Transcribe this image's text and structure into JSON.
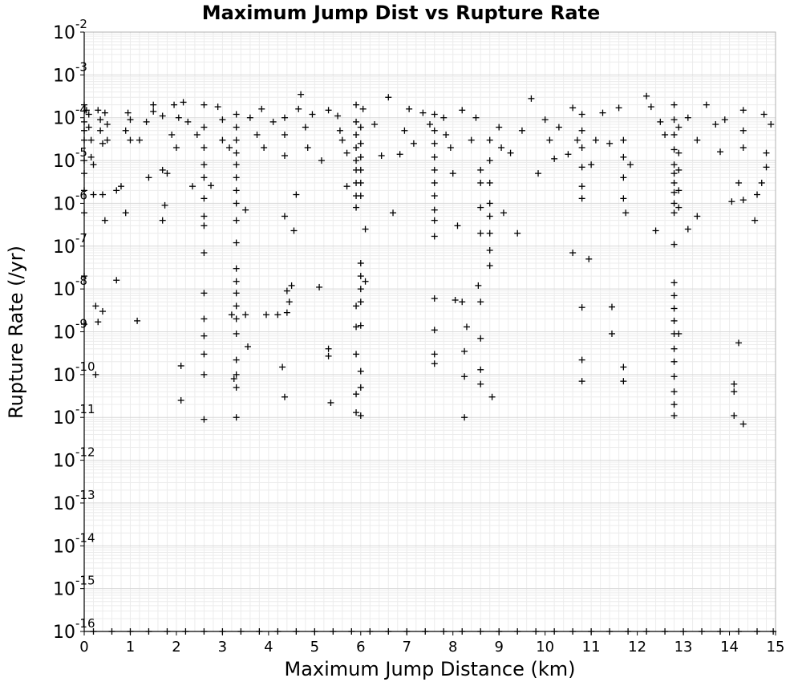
{
  "chart_data": {
    "type": "scatter",
    "title": "Maximum Jump Dist vs Rupture Rate",
    "xlabel": "Maximum Jump Distance (km)",
    "ylabel": "Rupture Rate (/yr)",
    "xlim": [
      0,
      15
    ],
    "ylim": [
      1e-16,
      0.01
    ],
    "yscale": "log",
    "grid": true,
    "marker": "plus",
    "x_ticks": [
      "0",
      "1",
      "2",
      "3",
      "4",
      "5",
      "6",
      "7",
      "8",
      "9",
      "10",
      "11",
      "12",
      "13",
      "14",
      "15"
    ],
    "y_ticks": [
      {
        "base": "10",
        "exp": "-2"
      },
      {
        "base": "10",
        "exp": "-3"
      },
      {
        "base": "10",
        "exp": "-4"
      },
      {
        "base": "10",
        "exp": "-5"
      },
      {
        "base": "10",
        "exp": "-6"
      },
      {
        "base": "10",
        "exp": "-7"
      },
      {
        "base": "10",
        "exp": "-8"
      },
      {
        "base": "10",
        "exp": "-9"
      },
      {
        "base": "10",
        "exp": "-10"
      },
      {
        "base": "10",
        "exp": "-11"
      },
      {
        "base": "10",
        "exp": "-12"
      },
      {
        "base": "10",
        "exp": "-13"
      },
      {
        "base": "10",
        "exp": "-14"
      },
      {
        "base": "10",
        "exp": "-15"
      },
      {
        "base": "10",
        "exp": "-16"
      }
    ],
    "points": [
      [
        0.0,
        0.0002
      ],
      [
        0.0,
        8e-05
      ],
      [
        0.0,
        5e-05
      ],
      [
        0.0,
        3e-05
      ],
      [
        0.0,
        1e-05
      ],
      [
        0.0,
        5e-06
      ],
      [
        0.0,
        2e-06
      ],
      [
        0.0,
        6e-07
      ],
      [
        0.0,
        2e-08
      ],
      [
        0.0,
        1.5e-09
      ],
      [
        0.05,
        0.00015
      ],
      [
        0.1,
        0.00012
      ],
      [
        0.1,
        6e-05
      ],
      [
        0.15,
        3e-05
      ],
      [
        0.15,
        1.2e-05
      ],
      [
        0.2,
        8e-06
      ],
      [
        0.2,
        1.6e-06
      ],
      [
        0.25,
        4e-09
      ],
      [
        0.25,
        1e-10
      ],
      [
        0.3,
        1.7e-09
      ],
      [
        0.3,
        0.00015
      ],
      [
        0.35,
        9e-05
      ],
      [
        0.35,
        5e-05
      ],
      [
        0.4,
        2.5e-05
      ],
      [
        0.4,
        3e-09
      ],
      [
        0.45,
        4e-07
      ],
      [
        0.4,
        1.6e-06
      ],
      [
        0.45,
        0.00013
      ],
      [
        0.5,
        7e-05
      ],
      [
        0.5,
        3e-05
      ],
      [
        0.7,
        1.6e-08
      ],
      [
        0.7,
        2e-06
      ],
      [
        0.8,
        2.5e-06
      ],
      [
        0.9,
        6e-07
      ],
      [
        0.9,
        5e-05
      ],
      [
        0.95,
        0.00013
      ],
      [
        1.0,
        3e-05
      ],
      [
        1.0,
        9e-05
      ],
      [
        1.15,
        1.8e-09
      ],
      [
        1.2,
        3e-05
      ],
      [
        1.35,
        8e-05
      ],
      [
        1.4,
        4e-06
      ],
      [
        1.5,
        0.0002
      ],
      [
        1.5,
        0.00014
      ],
      [
        1.7,
        0.00011
      ],
      [
        1.7,
        6e-06
      ],
      [
        1.7,
        4e-07
      ],
      [
        1.75,
        9e-07
      ],
      [
        1.8,
        5e-06
      ],
      [
        1.9,
        4e-05
      ],
      [
        1.95,
        0.0002
      ],
      [
        2.0,
        2e-05
      ],
      [
        2.05,
        0.0001
      ],
      [
        2.1,
        1.6e-10
      ],
      [
        2.1,
        2.5e-11
      ],
      [
        2.15,
        0.00023
      ],
      [
        2.25,
        8e-05
      ],
      [
        2.35,
        2.5e-06
      ],
      [
        2.45,
        4e-05
      ],
      [
        2.6,
        0.0002
      ],
      [
        2.6,
        6e-05
      ],
      [
        2.6,
        2e-05
      ],
      [
        2.6,
        8e-06
      ],
      [
        2.6,
        4e-06
      ],
      [
        2.6,
        1.3e-06
      ],
      [
        2.6,
        5e-07
      ],
      [
        2.6,
        3e-07
      ],
      [
        2.6,
        7e-08
      ],
      [
        2.6,
        8e-09
      ],
      [
        2.6,
        2e-09
      ],
      [
        2.6,
        8e-10
      ],
      [
        2.6,
        3e-10
      ],
      [
        2.6,
        1e-10
      ],
      [
        2.6,
        9e-12
      ],
      [
        2.75,
        2.6e-06
      ],
      [
        2.9,
        0.00018
      ],
      [
        3.0,
        9e-05
      ],
      [
        3.0,
        3e-05
      ],
      [
        3.15,
        2e-05
      ],
      [
        3.3,
        0.00012
      ],
      [
        3.3,
        6e-05
      ],
      [
        3.3,
        3e-05
      ],
      [
        3.3,
        1.5e-05
      ],
      [
        3.3,
        8e-06
      ],
      [
        3.3,
        4e-06
      ],
      [
        3.3,
        2e-06
      ],
      [
        3.3,
        1e-06
      ],
      [
        3.3,
        4e-07
      ],
      [
        3.3,
        1.2e-07
      ],
      [
        3.3,
        3e-08
      ],
      [
        3.3,
        1.5e-08
      ],
      [
        3.3,
        8e-09
      ],
      [
        3.3,
        4e-09
      ],
      [
        3.3,
        2e-09
      ],
      [
        3.3,
        9e-10
      ],
      [
        3.3,
        2.2e-10
      ],
      [
        3.3,
        1e-10
      ],
      [
        3.3,
        5e-11
      ],
      [
        3.3,
        1e-11
      ],
      [
        3.2,
        2.5e-09
      ],
      [
        3.25,
        8e-11
      ],
      [
        3.5,
        2.5e-09
      ],
      [
        3.55,
        4.5e-10
      ],
      [
        3.5,
        7e-07
      ],
      [
        3.6,
        0.0001
      ],
      [
        3.75,
        4e-05
      ],
      [
        3.85,
        0.00016
      ],
      [
        3.9,
        2e-05
      ],
      [
        3.95,
        2.5e-09
      ],
      [
        4.1,
        8e-05
      ],
      [
        4.2,
        2.5e-09
      ],
      [
        4.3,
        1.5e-10
      ],
      [
        4.35,
        3e-11
      ],
      [
        4.35,
        5e-07
      ],
      [
        4.35,
        1.3e-05
      ],
      [
        4.35,
        4e-05
      ],
      [
        4.35,
        0.0001
      ],
      [
        4.4,
        9e-09
      ],
      [
        4.4,
        2.8e-09
      ],
      [
        4.45,
        5e-09
      ],
      [
        4.5,
        1.2e-08
      ],
      [
        4.55,
        2.3e-07
      ],
      [
        4.6,
        1.6e-06
      ],
      [
        4.65,
        0.00016
      ],
      [
        4.7,
        0.00035
      ],
      [
        4.8,
        6e-05
      ],
      [
        4.85,
        2e-05
      ],
      [
        4.95,
        0.00012
      ],
      [
        5.1,
        1.1e-08
      ],
      [
        5.15,
        1e-05
      ],
      [
        5.3,
        4e-10
      ],
      [
        5.3,
        0.00015
      ],
      [
        5.3,
        2.7e-10
      ],
      [
        5.35,
        2.2e-11
      ],
      [
        5.5,
        0.00011
      ],
      [
        5.55,
        5e-05
      ],
      [
        5.6,
        3e-05
      ],
      [
        5.7,
        2.5e-06
      ],
      [
        5.7,
        1.5e-05
      ],
      [
        5.9,
        0.0002
      ],
      [
        5.9,
        8e-05
      ],
      [
        5.9,
        4e-05
      ],
      [
        5.9,
        2e-05
      ],
      [
        5.9,
        1e-05
      ],
      [
        5.9,
        6e-06
      ],
      [
        5.9,
        3e-06
      ],
      [
        5.9,
        1.5e-06
      ],
      [
        5.9,
        8e-07
      ],
      [
        5.9,
        4e-09
      ],
      [
        5.9,
        1.3e-09
      ],
      [
        5.9,
        3e-10
      ],
      [
        5.9,
        3.5e-11
      ],
      [
        5.9,
        1.3e-11
      ],
      [
        6.0,
        6e-05
      ],
      [
        6.0,
        2.5e-05
      ],
      [
        6.0,
        1.2e-05
      ],
      [
        6.0,
        6e-06
      ],
      [
        6.0,
        3e-06
      ],
      [
        6.0,
        1.5e-06
      ],
      [
        6.0,
        4e-08
      ],
      [
        6.0,
        2e-08
      ],
      [
        6.0,
        1e-08
      ],
      [
        6.0,
        5e-09
      ],
      [
        6.0,
        1.4e-09
      ],
      [
        6.0,
        1.2e-10
      ],
      [
        6.0,
        5e-11
      ],
      [
        6.0,
        1.1e-11
      ],
      [
        6.05,
        0.00016
      ],
      [
        6.1,
        2.5e-07
      ],
      [
        6.1,
        1.5e-08
      ],
      [
        6.3,
        7e-05
      ],
      [
        6.45,
        1.3e-05
      ],
      [
        6.6,
        0.0003
      ],
      [
        6.7,
        6e-07
      ],
      [
        6.85,
        1.4e-05
      ],
      [
        6.95,
        5e-05
      ],
      [
        7.05,
        0.00016
      ],
      [
        7.15,
        2.5e-05
      ],
      [
        7.35,
        0.00013
      ],
      [
        7.5,
        7e-05
      ],
      [
        7.6,
        0.00012
      ],
      [
        7.6,
        5e-05
      ],
      [
        7.6,
        2.5e-05
      ],
      [
        7.6,
        1.2e-05
      ],
      [
        7.6,
        6e-06
      ],
      [
        7.6,
        3e-06
      ],
      [
        7.6,
        1.5e-06
      ],
      [
        7.6,
        7e-07
      ],
      [
        7.6,
        4e-07
      ],
      [
        7.6,
        1.7e-07
      ],
      [
        7.6,
        6e-09
      ],
      [
        7.6,
        1.1e-09
      ],
      [
        7.6,
        3e-10
      ],
      [
        7.6,
        1.8e-10
      ],
      [
        7.8,
        0.0001
      ],
      [
        7.85,
        4e-05
      ],
      [
        7.95,
        2e-05
      ],
      [
        8.0,
        5e-06
      ],
      [
        8.05,
        5.5e-09
      ],
      [
        8.1,
        3e-07
      ],
      [
        8.2,
        5e-09
      ],
      [
        8.2,
        0.00015
      ],
      [
        8.25,
        3.5e-10
      ],
      [
        8.25,
        9e-11
      ],
      [
        8.25,
        1e-11
      ],
      [
        8.3,
        1.3e-09
      ],
      [
        8.4,
        3e-05
      ],
      [
        8.5,
        0.0001
      ],
      [
        8.55,
        1.2e-08
      ],
      [
        8.6,
        6e-06
      ],
      [
        8.6,
        3e-06
      ],
      [
        8.6,
        8e-07
      ],
      [
        8.6,
        2e-07
      ],
      [
        8.6,
        5e-09
      ],
      [
        8.6,
        7e-10
      ],
      [
        8.6,
        1.3e-10
      ],
      [
        8.6,
        6e-11
      ],
      [
        8.8,
        3e-05
      ],
      [
        8.8,
        1e-05
      ],
      [
        8.8,
        3e-06
      ],
      [
        8.8,
        1e-06
      ],
      [
        8.8,
        5e-07
      ],
      [
        8.8,
        2e-07
      ],
      [
        8.8,
        8e-08
      ],
      [
        8.8,
        3.5e-08
      ],
      [
        8.85,
        3e-11
      ],
      [
        9.0,
        6e-05
      ],
      [
        9.05,
        2e-05
      ],
      [
        9.1,
        6e-07
      ],
      [
        9.25,
        1.5e-05
      ],
      [
        9.4,
        2e-07
      ],
      [
        9.5,
        5e-05
      ],
      [
        9.7,
        0.00028
      ],
      [
        9.85,
        5e-06
      ],
      [
        10.0,
        9e-05
      ],
      [
        10.1,
        3e-05
      ],
      [
        10.2,
        1.1e-05
      ],
      [
        10.3,
        6e-05
      ],
      [
        10.5,
        1.4e-05
      ],
      [
        10.6,
        0.00017
      ],
      [
        10.6,
        7e-08
      ],
      [
        10.7,
        3e-05
      ],
      [
        10.8,
        0.00012
      ],
      [
        10.8,
        5e-05
      ],
      [
        10.8,
        2e-05
      ],
      [
        10.8,
        7e-06
      ],
      [
        10.8,
        2.5e-06
      ],
      [
        10.8,
        1.3e-06
      ],
      [
        10.8,
        3.7e-09
      ],
      [
        10.8,
        2.2e-10
      ],
      [
        10.8,
        7e-11
      ],
      [
        10.95,
        5e-08
      ],
      [
        11.0,
        8e-06
      ],
      [
        11.1,
        3e-05
      ],
      [
        11.25,
        0.00013
      ],
      [
        11.4,
        2.5e-05
      ],
      [
        11.45,
        3.8e-09
      ],
      [
        11.45,
        9e-10
      ],
      [
        11.6,
        0.00017
      ],
      [
        11.7,
        3e-05
      ],
      [
        11.7,
        1.2e-05
      ],
      [
        11.7,
        4e-06
      ],
      [
        11.7,
        1.3e-06
      ],
      [
        11.7,
        1.5e-10
      ],
      [
        11.7,
        7e-11
      ],
      [
        11.75,
        6e-07
      ],
      [
        11.85,
        8e-06
      ],
      [
        12.2,
        0.00032
      ],
      [
        12.3,
        0.00018
      ],
      [
        12.4,
        2.3e-07
      ],
      [
        12.5,
        8e-05
      ],
      [
        12.6,
        4e-05
      ],
      [
        12.8,
        0.0002
      ],
      [
        12.8,
        9e-05
      ],
      [
        12.8,
        4e-05
      ],
      [
        12.8,
        1.8e-05
      ],
      [
        12.8,
        8e-06
      ],
      [
        12.8,
        5e-06
      ],
      [
        12.8,
        3e-06
      ],
      [
        12.8,
        1.8e-06
      ],
      [
        12.8,
        1e-06
      ],
      [
        12.8,
        6e-07
      ],
      [
        12.8,
        1.1e-07
      ],
      [
        12.8,
        1.4e-08
      ],
      [
        12.8,
        7e-09
      ],
      [
        12.8,
        3.5e-09
      ],
      [
        12.8,
        1.8e-09
      ],
      [
        12.8,
        9e-10
      ],
      [
        12.8,
        4e-10
      ],
      [
        12.8,
        2e-10
      ],
      [
        12.8,
        9e-11
      ],
      [
        12.8,
        4e-11
      ],
      [
        12.8,
        2e-11
      ],
      [
        12.8,
        1.1e-11
      ],
      [
        12.9,
        6e-05
      ],
      [
        12.9,
        1.5e-05
      ],
      [
        12.9,
        6e-06
      ],
      [
        12.9,
        2e-06
      ],
      [
        12.9,
        8e-07
      ],
      [
        12.9,
        9e-10
      ],
      [
        13.1,
        2.5e-07
      ],
      [
        13.1,
        0.0001
      ],
      [
        13.3,
        5e-07
      ],
      [
        13.3,
        3e-05
      ],
      [
        13.5,
        0.0002
      ],
      [
        13.7,
        7e-05
      ],
      [
        13.8,
        1.6e-05
      ],
      [
        13.9,
        9e-05
      ],
      [
        14.05,
        1.1e-06
      ],
      [
        14.1,
        6e-11
      ],
      [
        14.1,
        4e-11
      ],
      [
        14.1,
        1.1e-11
      ],
      [
        14.2,
        5.5e-10
      ],
      [
        14.2,
        3e-06
      ],
      [
        14.3,
        0.00015
      ],
      [
        14.3,
        5e-05
      ],
      [
        14.3,
        2e-05
      ],
      [
        14.3,
        1.2e-06
      ],
      [
        14.3,
        7e-12
      ],
      [
        14.55,
        4e-07
      ],
      [
        14.6,
        1.6e-06
      ],
      [
        14.7,
        3e-06
      ],
      [
        14.75,
        0.00012
      ],
      [
        14.8,
        1.5e-05
      ],
      [
        14.8,
        7e-06
      ],
      [
        14.9,
        7e-05
      ],
      [
        0.2,
        1e-16
      ],
      [
        0.6,
        1e-16
      ],
      [
        1.0,
        1e-16
      ],
      [
        1.4,
        1e-16
      ],
      [
        1.8,
        1e-16
      ],
      [
        2.2,
        1e-16
      ],
      [
        2.6,
        1e-16
      ],
      [
        3.0,
        1e-16
      ],
      [
        3.4,
        1e-16
      ],
      [
        3.8,
        1e-16
      ],
      [
        4.2,
        1e-16
      ],
      [
        4.6,
        1e-16
      ],
      [
        5.0,
        1e-16
      ],
      [
        5.4,
        1e-16
      ],
      [
        5.8,
        1e-16
      ],
      [
        6.2,
        1e-16
      ],
      [
        6.6,
        1e-16
      ],
      [
        7.0,
        1e-16
      ],
      [
        7.4,
        1e-16
      ],
      [
        7.8,
        1e-16
      ],
      [
        8.2,
        1e-16
      ],
      [
        8.6,
        1e-16
      ],
      [
        9.0,
        1e-16
      ],
      [
        9.4,
        1e-16
      ],
      [
        9.8,
        1e-16
      ],
      [
        10.2,
        1e-16
      ],
      [
        10.6,
        1e-16
      ],
      [
        11.0,
        1e-16
      ],
      [
        11.4,
        1e-16
      ],
      [
        11.8,
        1e-16
      ],
      [
        12.2,
        1e-16
      ],
      [
        12.6,
        1e-16
      ],
      [
        13.0,
        1e-16
      ],
      [
        13.4,
        1e-16
      ],
      [
        13.8,
        1e-16
      ],
      [
        14.2,
        1e-16
      ],
      [
        14.6,
        1e-16
      ],
      [
        14.95,
        1e-16
      ]
    ]
  }
}
